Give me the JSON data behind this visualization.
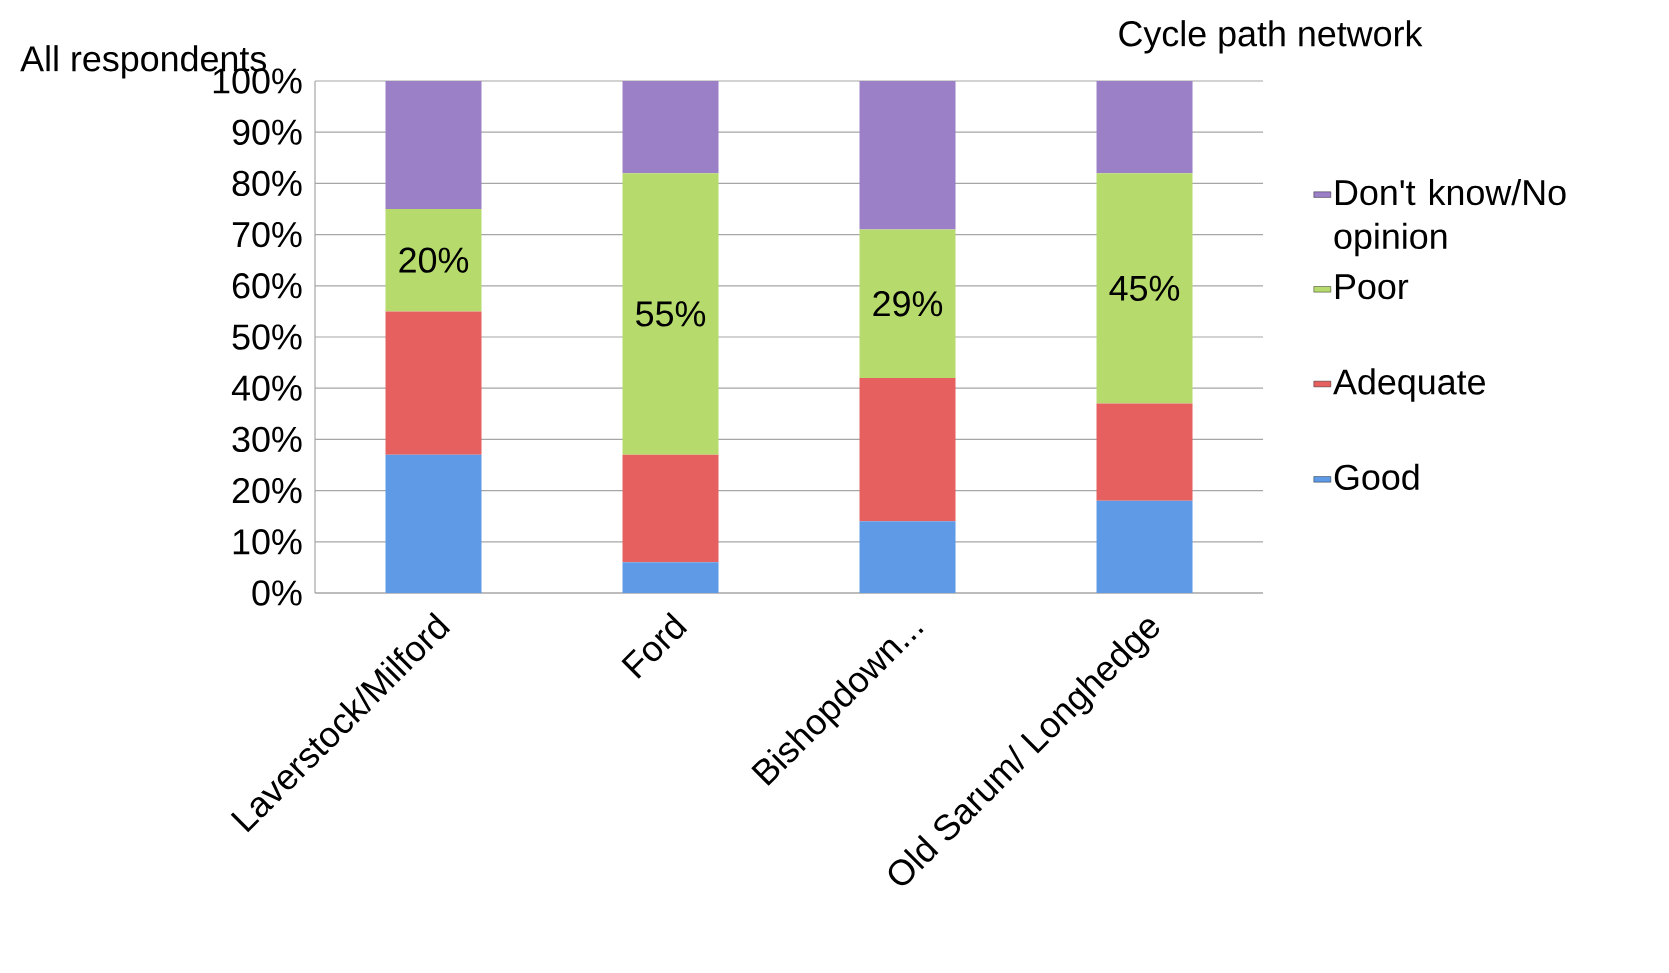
{
  "chart_data": {
    "type": "bar",
    "stacked": true,
    "title": "Cycle path network",
    "ylabel": "All respondents",
    "categories": [
      "Laverstock/Milford",
      "Ford",
      "Bishopdown...",
      "Old Sarum/ Longhedge"
    ],
    "series": [
      {
        "name": "Good",
        "color": "#5f9ae6",
        "values": [
          27,
          6,
          14,
          18
        ]
      },
      {
        "name": "Adequate",
        "color": "#e5605f",
        "values": [
          28,
          21,
          28,
          19
        ]
      },
      {
        "name": "Poor",
        "color": "#b6db6c",
        "values": [
          20,
          55,
          29,
          45
        ],
        "value_labels": [
          "20%",
          "55%",
          "29%",
          "45%"
        ]
      },
      {
        "name": "Don't know/No opinion",
        "color": "#9b80c8",
        "values": [
          25,
          18,
          29,
          18
        ]
      }
    ],
    "ylim": [
      0,
      100
    ],
    "yticks": [
      {
        "value": 0,
        "label": "0%"
      },
      {
        "value": 10,
        "label": "10%"
      },
      {
        "value": 20,
        "label": "20%"
      },
      {
        "value": 30,
        "label": "30%"
      },
      {
        "value": 40,
        "label": "40%"
      },
      {
        "value": 50,
        "label": "50%"
      },
      {
        "value": 60,
        "label": "60%"
      },
      {
        "value": 70,
        "label": "70%"
      },
      {
        "value": 80,
        "label": "80%"
      },
      {
        "value": 90,
        "label": "90%"
      },
      {
        "value": 100,
        "label": "100%"
      }
    ],
    "grid": "y",
    "legend": "right"
  }
}
